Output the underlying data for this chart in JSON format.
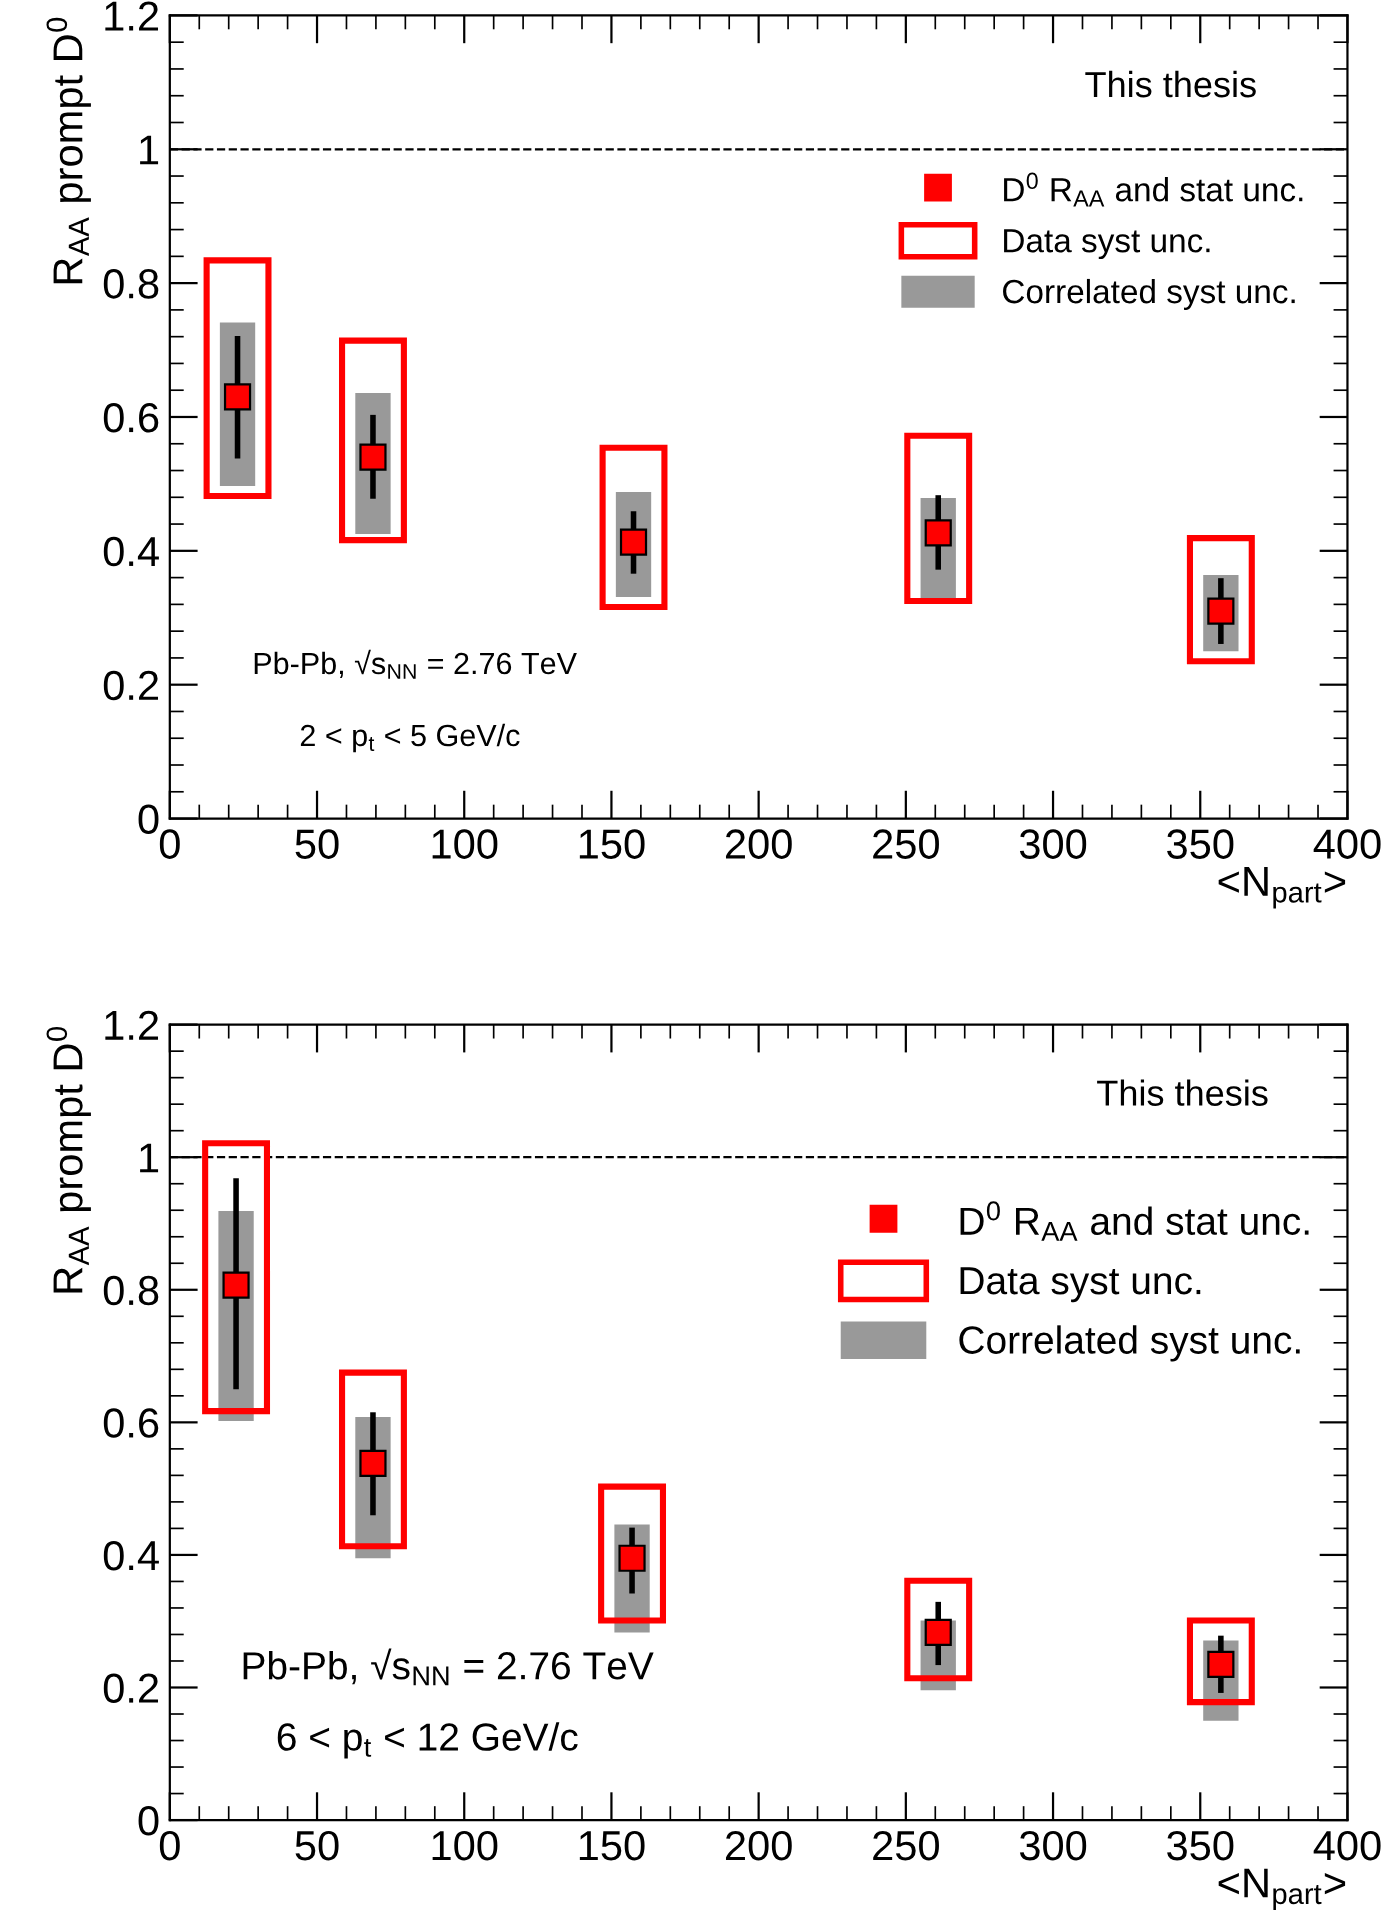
{
  "chart_data": [
    {
      "type": "scatter",
      "xlabel": "<N$_{part}$>",
      "ylabel": "R$_{AA}$ prompt D$^{0}$",
      "xlim": [
        0,
        400
      ],
      "xticks": [
        0,
        50,
        100,
        150,
        200,
        250,
        300,
        350,
        400
      ],
      "ylim": [
        0,
        1.2
      ],
      "yticks": [
        0,
        0.2,
        0.4,
        0.6,
        0.8,
        1,
        1.2
      ],
      "annotations": [
        "This thesis",
        "Pb-Pb, √s$_{NN}$ = 2.76 TeV",
        "2 < p$_{t}$ < 5 GeV/c"
      ],
      "ref_lines": [
        {
          "axis": "y",
          "value": 1,
          "color": "#000000",
          "line_style": "dashed"
        }
      ],
      "legend": "top right",
      "grid": false,
      "marker": "square",
      "series": [
        {
          "name": "Correlated syst unc.",
          "type": "bar",
          "color": "#999999",
          "x": [
            23,
            69,
            157.5,
            261,
            357
          ],
          "base": [
            0.497,
            0.425,
            0.331,
            0.328,
            0.25
          ],
          "values": [
            0.244,
            0.211,
            0.157,
            0.151,
            0.114
          ]
        },
        {
          "name": "Data syst unc.",
          "type": "bar",
          "color": "#ff0000",
          "x": [
            23,
            69,
            157.5,
            261,
            357
          ],
          "base": [
            0.482,
            0.416,
            0.316,
            0.325,
            0.235
          ],
          "values": [
            0.352,
            0.298,
            0.238,
            0.247,
            0.184
          ]
        },
        {
          "name": "D$^{0}$ R$_{AA}$ and stat unc.",
          "color": "#ff0000",
          "x": [
            23,
            69,
            157.5,
            261,
            357
          ],
          "values": [
            0.63,
            0.54,
            0.413,
            0.427,
            0.31
          ],
          "errors": [
            [
              0.542,
              0.717
            ],
            [
              0.482,
              0.599
            ],
            [
              0.37,
              0.455
            ],
            [
              0.376,
              0.479
            ],
            [
              0.265,
              0.355
            ]
          ]
        }
      ]
    },
    {
      "type": "scatter",
      "xlabel": "<N$_{part}$>",
      "ylabel": "R$_{AA}$ prompt D$^{0}$",
      "xlim": [
        0,
        400
      ],
      "xticks": [
        0,
        50,
        100,
        150,
        200,
        250,
        300,
        350,
        400
      ],
      "ylim": [
        0,
        1.2
      ],
      "yticks": [
        0,
        0.2,
        0.4,
        0.6,
        0.8,
        1,
        1.2
      ],
      "annotations": [
        "This thesis",
        "Pb-Pb, √s$_{NN}$ = 2.76 TeV",
        "6 < p$_{t}$ < 12 GeV/c"
      ],
      "ref_lines": [
        {
          "axis": "y",
          "value": 1,
          "color": "#000000",
          "line_style": "dashed"
        }
      ],
      "legend": "top right",
      "grid": false,
      "marker": "square",
      "series": [
        {
          "name": "Correlated syst unc.",
          "type": "bar",
          "color": "#999999",
          "x": [
            22.5,
            69,
            157,
            261,
            357
          ],
          "base": [
            0.602,
            0.395,
            0.283,
            0.196,
            0.15
          ],
          "values": [
            0.317,
            0.213,
            0.163,
            0.105,
            0.121
          ]
        },
        {
          "name": "Data syst unc.",
          "type": "bar",
          "color": "#ff0000",
          "x": [
            22.5,
            69,
            157,
            261,
            357
          ],
          "base": [
            0.617,
            0.413,
            0.301,
            0.214,
            0.178
          ],
          "values": [
            0.404,
            0.262,
            0.202,
            0.147,
            0.123
          ]
        },
        {
          "name": "D$^{0}$ R$_{AA}$ and stat unc.",
          "color": "#ff0000",
          "x": [
            22.5,
            69,
            157,
            261,
            357
          ],
          "values": [
            0.807,
            0.538,
            0.395,
            0.283,
            0.235
          ],
          "errors": [
            [
              0.654,
              0.964
            ],
            [
              0.464,
              0.611
            ],
            [
              0.346,
              0.437
            ],
            [
              0.238,
              0.325
            ],
            [
              0.196,
              0.274
            ]
          ]
        }
      ]
    }
  ]
}
